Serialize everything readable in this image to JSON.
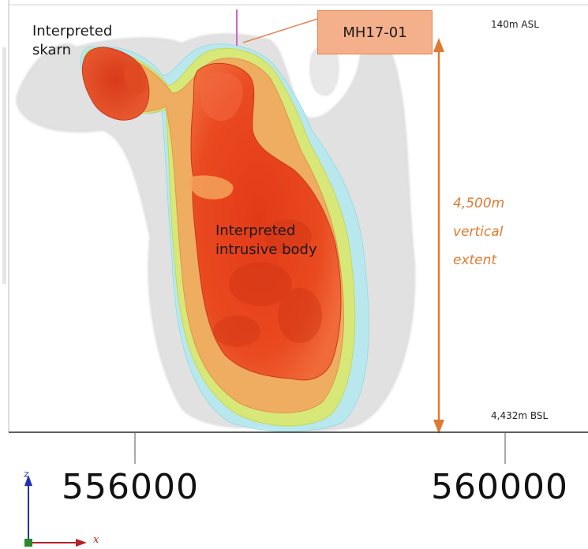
{
  "labels": {
    "skarn_line1": "Interpreted",
    "skarn_line2": "skarn",
    "intrusive_line1": "Interpreted",
    "intrusive_line2": "intrusive body",
    "drillhole": "MH17-01",
    "top_elevation": "140m ASL",
    "bottom_elevation": "4,432m BSL",
    "extent_line1": "4,500m",
    "extent_line2": "vertical",
    "extent_line3": "extent"
  },
  "easting_ticks": [
    "556000",
    "560000"
  ],
  "axis_triad": {
    "z_label": "z",
    "x_label": "x"
  },
  "colors": {
    "shell_outer": "#d9d9d9",
    "shell_cyan": "#a8e6ec",
    "shell_yellow": "#d8e86a",
    "shell_orange": "#f0a35a",
    "core_red": "#e8491f",
    "extent_arrow": "#e07a32",
    "drillhole_trace": "#cc66cc"
  }
}
